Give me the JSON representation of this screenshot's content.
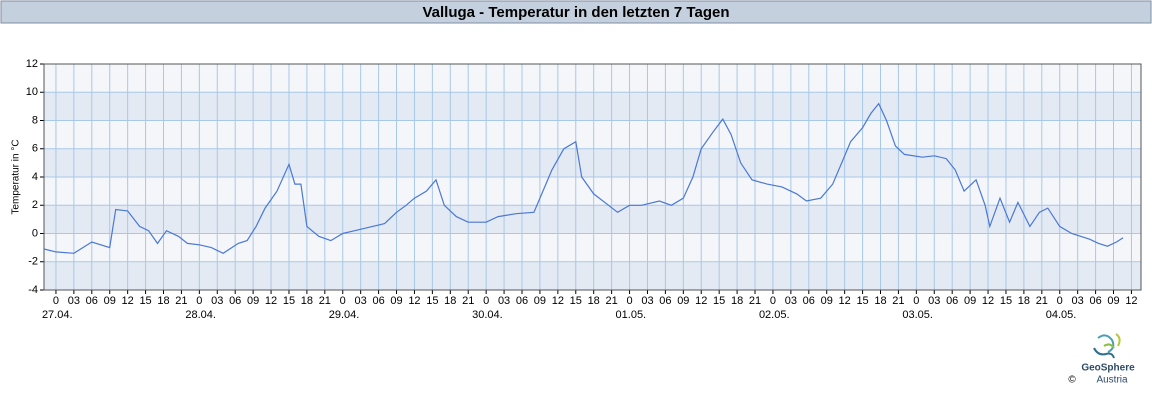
{
  "chart_data": {
    "type": "line",
    "title": "Valluga - Temperatur in den letzten 7 Tagen",
    "y_label": "Temperatur in °C",
    "color": "#4a78d6",
    "grid": true,
    "xlim": [
      -2,
      181.6
    ],
    "ylim": [
      -4,
      12
    ],
    "yticks": [
      -4,
      -2,
      0,
      2,
      4,
      6,
      8,
      10,
      12
    ],
    "xticks": [
      {
        "value": 0,
        "label": "0"
      },
      {
        "value": 3,
        "label": "03"
      },
      {
        "value": 6,
        "label": "06"
      },
      {
        "value": 9,
        "label": "09"
      },
      {
        "value": 12,
        "label": "12"
      },
      {
        "value": 15,
        "label": "15"
      },
      {
        "value": 18,
        "label": "18"
      },
      {
        "value": 21,
        "label": "21"
      },
      {
        "value": 24,
        "label": "0"
      },
      {
        "value": 27,
        "label": "03"
      },
      {
        "value": 30,
        "label": "06"
      },
      {
        "value": 33,
        "label": "09"
      },
      {
        "value": 36,
        "label": "12"
      },
      {
        "value": 39,
        "label": "15"
      },
      {
        "value": 42,
        "label": "18"
      },
      {
        "value": 45,
        "label": "21"
      },
      {
        "value": 48,
        "label": "0"
      },
      {
        "value": 51,
        "label": "03"
      },
      {
        "value": 54,
        "label": "06"
      },
      {
        "value": 57,
        "label": "09"
      },
      {
        "value": 60,
        "label": "12"
      },
      {
        "value": 63,
        "label": "15"
      },
      {
        "value": 66,
        "label": "18"
      },
      {
        "value": 69,
        "label": "21"
      },
      {
        "value": 72,
        "label": "0"
      },
      {
        "value": 75,
        "label": "03"
      },
      {
        "value": 78,
        "label": "06"
      },
      {
        "value": 81,
        "label": "09"
      },
      {
        "value": 84,
        "label": "12"
      },
      {
        "value": 87,
        "label": "15"
      },
      {
        "value": 90,
        "label": "18"
      },
      {
        "value": 93,
        "label": "21"
      },
      {
        "value": 96,
        "label": "0"
      },
      {
        "value": 99,
        "label": "03"
      },
      {
        "value": 102,
        "label": "06"
      },
      {
        "value": 105,
        "label": "09"
      },
      {
        "value": 108,
        "label": "12"
      },
      {
        "value": 111,
        "label": "15"
      },
      {
        "value": 114,
        "label": "18"
      },
      {
        "value": 117,
        "label": "21"
      },
      {
        "value": 120,
        "label": "0"
      },
      {
        "value": 123,
        "label": "03"
      },
      {
        "value": 126,
        "label": "06"
      },
      {
        "value": 129,
        "label": "09"
      },
      {
        "value": 132,
        "label": "12"
      },
      {
        "value": 135,
        "label": "15"
      },
      {
        "value": 138,
        "label": "18"
      },
      {
        "value": 141,
        "label": "21"
      },
      {
        "value": 144,
        "label": "0"
      },
      {
        "value": 147,
        "label": "03"
      },
      {
        "value": 150,
        "label": "06"
      },
      {
        "value": 153,
        "label": "09"
      },
      {
        "value": 156,
        "label": "12"
      },
      {
        "value": 159,
        "label": "15"
      },
      {
        "value": 162,
        "label": "18"
      },
      {
        "value": 165,
        "label": "21"
      },
      {
        "value": 168,
        "label": "0"
      },
      {
        "value": 171,
        "label": "03"
      },
      {
        "value": 174,
        "label": "06"
      },
      {
        "value": 177,
        "label": "09"
      },
      {
        "value": 180,
        "label": "12"
      }
    ],
    "date_labels": [
      {
        "value": 0,
        "label": "27.04."
      },
      {
        "value": 24,
        "label": "28.04."
      },
      {
        "value": 48,
        "label": "29.04."
      },
      {
        "value": 72,
        "label": "30.04."
      },
      {
        "value": 96,
        "label": "01.05."
      },
      {
        "value": 120,
        "label": "02.05."
      },
      {
        "value": 144,
        "label": "03.05."
      },
      {
        "value": 168,
        "label": "04.05."
      }
    ],
    "x": [
      -2,
      0,
      3,
      6,
      9,
      10,
      12,
      14,
      15.5,
      17,
      18.5,
      20.5,
      22,
      24,
      26,
      28,
      30.5,
      32,
      33.5,
      35,
      37,
      39,
      40,
      41,
      42,
      44,
      46,
      48,
      50,
      53,
      55,
      57,
      58.6,
      60,
      62,
      63.6,
      65,
      67,
      69,
      72,
      74,
      77,
      80,
      82,
      83,
      85,
      87,
      88,
      90,
      92.5,
      94,
      96,
      98,
      101,
      103,
      105,
      106.6,
      108,
      110,
      111.6,
      113,
      114.6,
      116.5,
      119,
      121.5,
      124,
      125.6,
      128,
      130,
      131.5,
      133,
      135,
      136.4,
      137.7,
      139,
      140.5,
      142,
      145,
      147,
      149,
      150.5,
      152,
      154,
      155.5,
      156.3,
      158,
      159.6,
      161,
      163,
      164.6,
      166,
      168,
      170,
      173,
      174.5,
      176,
      177.5,
      178.6
    ],
    "values": [
      -1.1,
      -1.3,
      -1.4,
      -0.6,
      -1.0,
      1.7,
      1.6,
      0.5,
      0.2,
      -0.7,
      0.2,
      -0.2,
      -0.7,
      -0.8,
      -1.0,
      -1.4,
      -0.7,
      -0.5,
      0.5,
      1.8,
      3.0,
      4.9,
      3.5,
      3.5,
      0.5,
      -0.2,
      -0.5,
      0,
      0.2,
      0.5,
      0.7,
      1.5,
      2.0,
      2.5,
      3.0,
      3.8,
      2.0,
      1.2,
      0.8,
      0.8,
      1.2,
      1.4,
      1.5,
      3.5,
      4.5,
      6.0,
      6.5,
      4.0,
      2.8,
      2.0,
      1.5,
      2.0,
      2.0,
      2.3,
      2.0,
      2.5,
      4.0,
      6.0,
      7.2,
      8.1,
      7.0,
      5.0,
      3.8,
      3.5,
      3.3,
      2.8,
      2.3,
      2.5,
      3.5,
      5.0,
      6.5,
      7.5,
      8.5,
      9.2,
      8.0,
      6.2,
      5.6,
      5.4,
      5.5,
      5.3,
      4.5,
      3.0,
      3.8,
      2.0,
      0.5,
      2.5,
      0.8,
      2.2,
      0.5,
      1.5,
      1.8,
      0.5,
      0.0,
      -0.4,
      -0.7,
      -0.9,
      -0.6,
      -0.3
    ]
  },
  "logo": {
    "name": "GeoSphere",
    "sub": "Austria",
    "copyright": "©"
  }
}
